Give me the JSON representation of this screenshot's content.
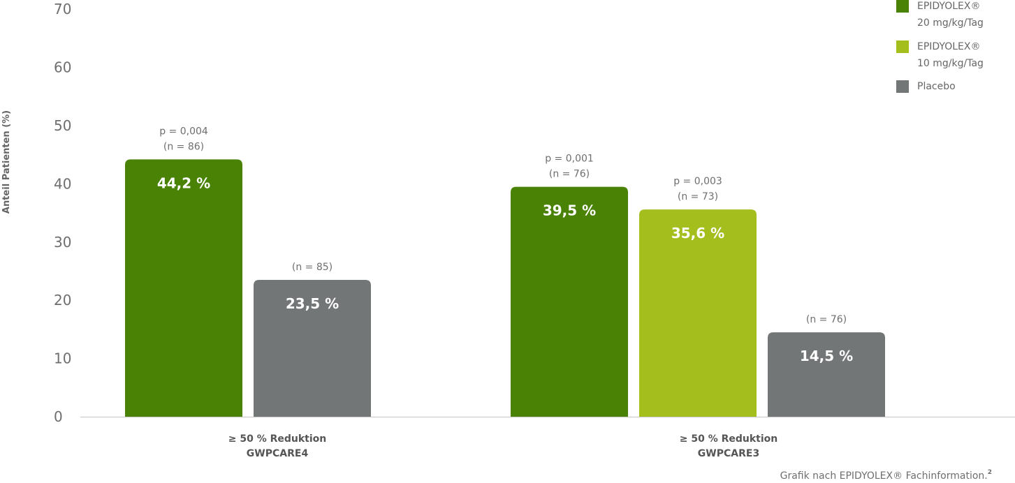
{
  "chart_data": {
    "type": "bar",
    "ylabel": "Anteil Patienten (%)",
    "ylim": [
      0,
      70
    ],
    "yticks": [
      0,
      10,
      20,
      30,
      40,
      50,
      60,
      70
    ],
    "grid": false,
    "legend_position": "top-right",
    "series": [
      {
        "name": "EPIDYOLEX® 20 mg/kg/Tag",
        "name_lines": [
          "EPIDYOLEX®",
          "20 mg/kg/Tag"
        ],
        "color": "#4a8206"
      },
      {
        "name": "EPIDYOLEX® 10 mg/kg/Tag",
        "name_lines": [
          "EPIDYOLEX®",
          "10 mg/kg/Tag"
        ],
        "color": "#a4be1d"
      },
      {
        "name": "Placebo",
        "name_lines": [
          "Placebo"
        ],
        "color": "#737677"
      }
    ],
    "groups": [
      {
        "label_lines": [
          "≥ 50 % Reduktion",
          "GWPCARE4"
        ],
        "bars": [
          {
            "series": 0,
            "value": 44.2,
            "label": "44,2 %",
            "annotation": [
              "p = 0,004",
              "(n = 86)"
            ]
          },
          {
            "series": 2,
            "value": 23.5,
            "label": "23,5 %",
            "annotation": [
              "(n = 85)"
            ]
          }
        ]
      },
      {
        "label_lines": [
          "≥ 50 % Reduktion",
          "GWPCARE3"
        ],
        "bars": [
          {
            "series": 0,
            "value": 39.5,
            "label": "39,5 %",
            "annotation": [
              "p = 0,001",
              "(n = 76)"
            ]
          },
          {
            "series": 1,
            "value": 35.6,
            "label": "35,6 %",
            "annotation": [
              "p = 0,003",
              "(n = 73)"
            ]
          },
          {
            "series": 2,
            "value": 14.5,
            "label": "14,5 %",
            "annotation": [
              "(n = 76)"
            ]
          }
        ]
      }
    ],
    "source_note": "Grafik nach EPIDYOLEX® Fachinformation.",
    "source_superscript": "2"
  }
}
